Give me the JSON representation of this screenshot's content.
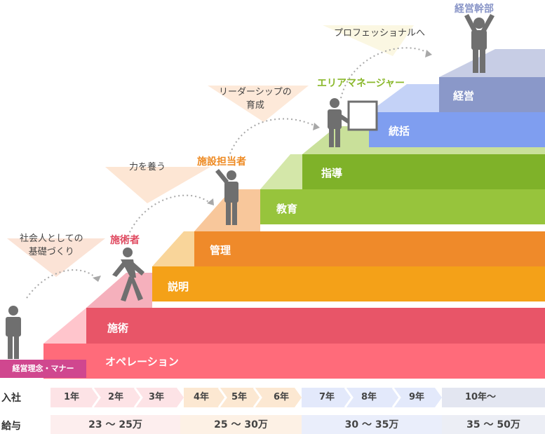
{
  "steps": {
    "operation": "オペレーション",
    "sejutsu": "施術",
    "setsumei": "説明",
    "kanri": "管理",
    "kyoiku": "教育",
    "shido": "指導",
    "tokatsu": "統括",
    "keiei": "経営"
  },
  "base_tag": "経営理念・マナー",
  "roles": {
    "sejutsusha": "施術者",
    "shisetsu": "施設担当者",
    "area": "エリアマネージャー",
    "kanbu": "経営幹部"
  },
  "notes": {
    "kiso_1": "社会人としての",
    "kiso_2": "基礎づくり",
    "chikara": "力を養う",
    "leader_1": "リーダーシップの",
    "leader_2": "育成",
    "pro": "プロフェッショナルへ"
  },
  "table": {
    "entry_header": "入社",
    "pay_header": "給与",
    "years": [
      "1年",
      "2年",
      "3年",
      "4年",
      "5年",
      "6年",
      "7年",
      "8年",
      "9年",
      "10年〜"
    ],
    "pay": [
      "23 〜 25万",
      "25 〜 30万",
      "30 〜 35万",
      "35 〜 50万"
    ]
  },
  "colors": {
    "operation": "#ff6b7a",
    "sejutsu": "#e85568",
    "setsumei": "#f4a118",
    "kanri": "#ef8a2a",
    "kyoiku": "#97c43c",
    "shido": "#7fb229",
    "tokatsu": "#7f9ef0",
    "keiei": "#8a98c9",
    "role_sejutsusha": "#e04a60",
    "role_shisetsu": "#ee8a22",
    "role_area": "#8ab82b",
    "role_kanbu": "#8a96c8",
    "person": "#6f6f6f"
  }
}
